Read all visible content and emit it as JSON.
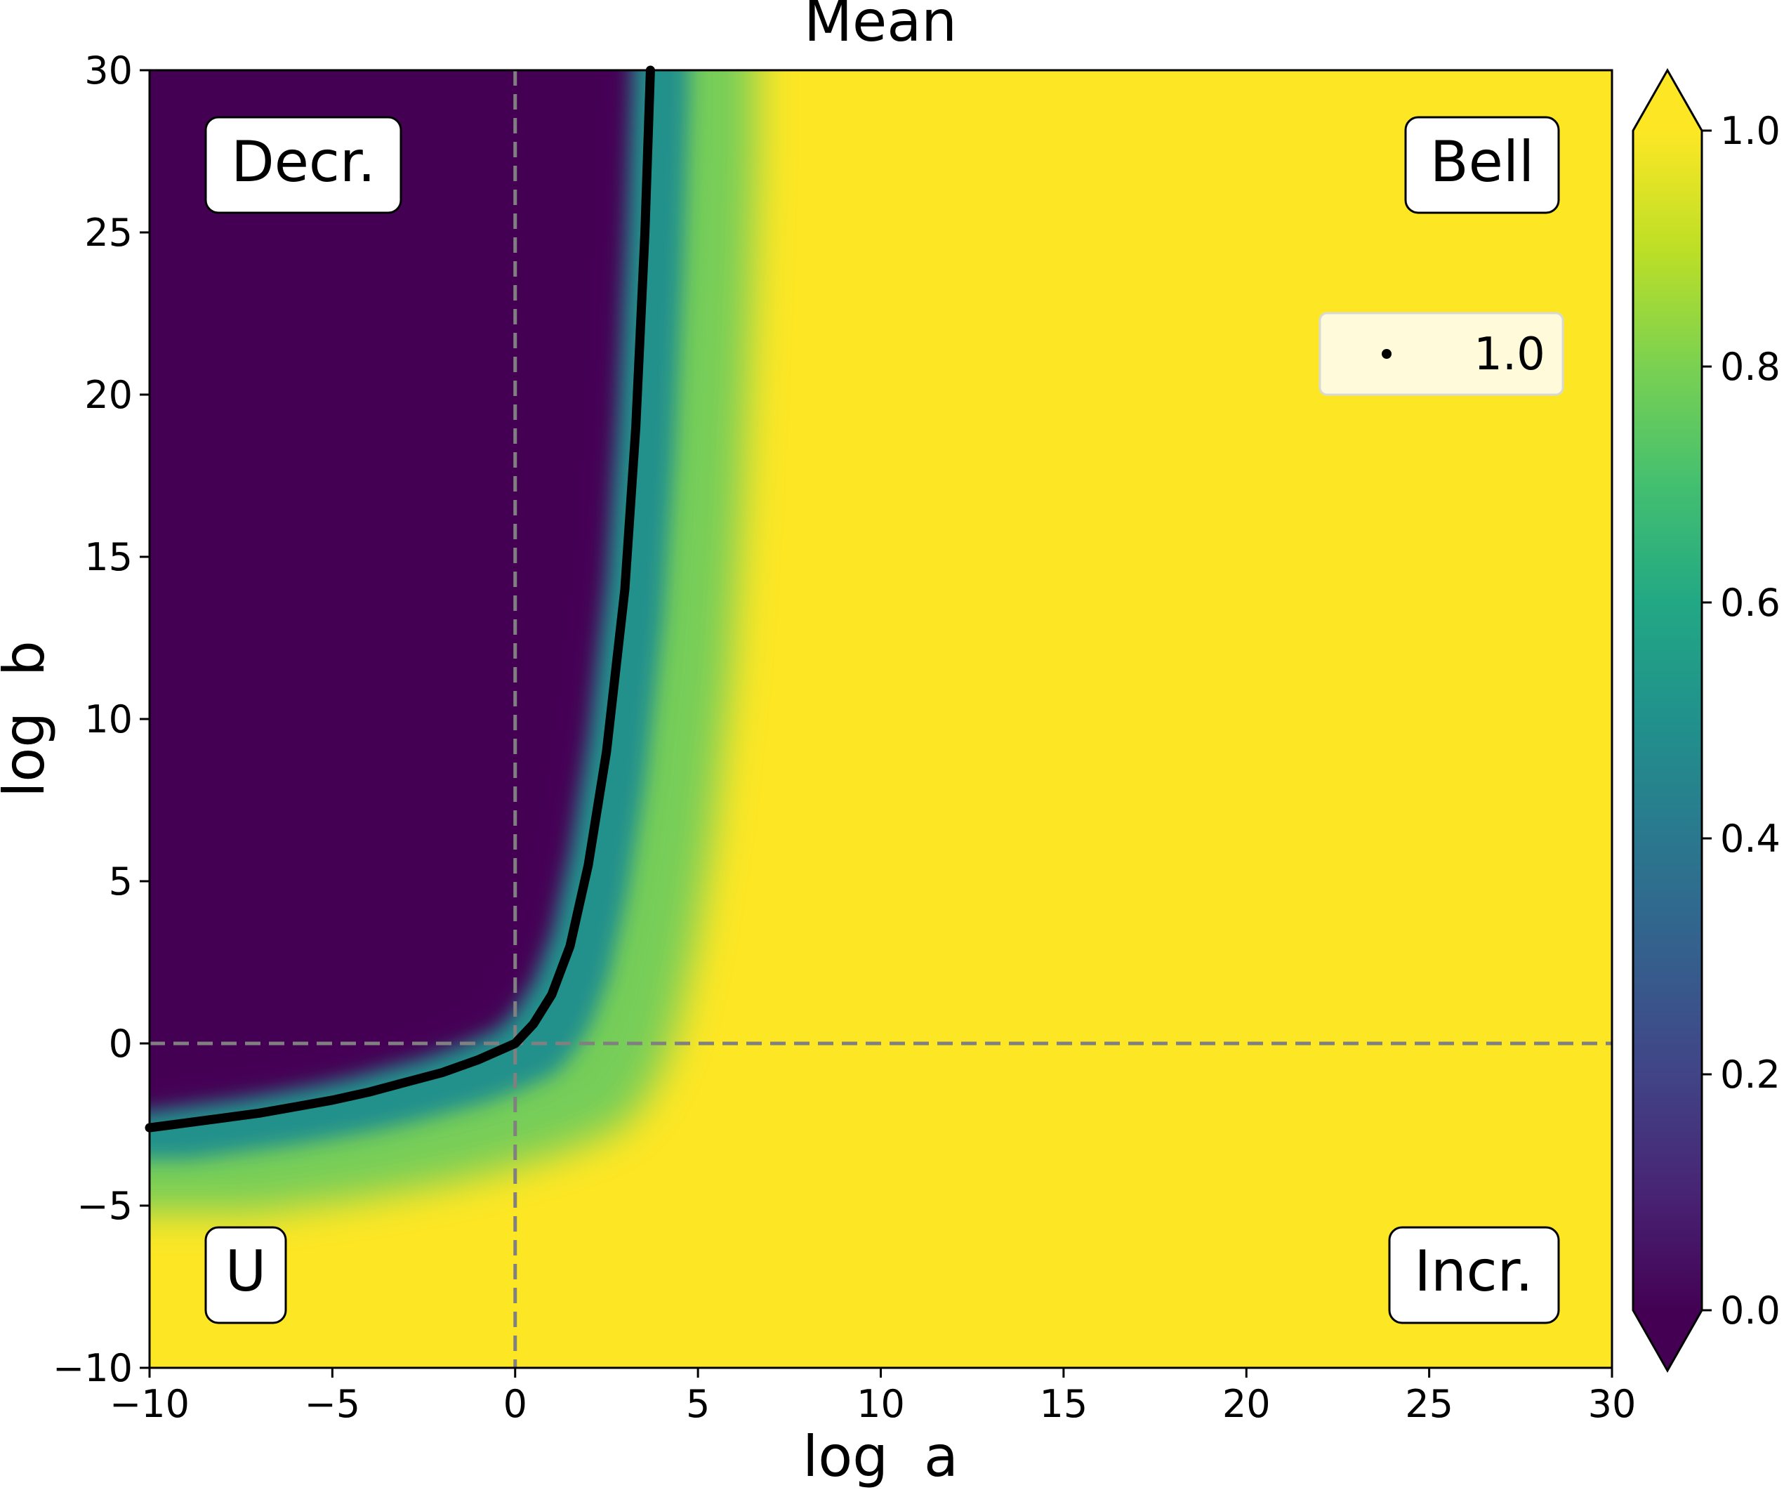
{
  "chart_data": {
    "type": "heatmap",
    "title": "Mean",
    "xlabel": "log  a",
    "ylabel": "log  b",
    "xlim": [
      -10,
      30
    ],
    "ylim": [
      -10,
      30
    ],
    "x_ticks": [
      -10,
      -5,
      0,
      5,
      10,
      15,
      20,
      25,
      30
    ],
    "y_ticks": [
      -10,
      -5,
      0,
      5,
      10,
      15,
      20,
      25,
      30
    ],
    "x_tick_labels": [
      "−10",
      "−5",
      "0",
      "5",
      "10",
      "15",
      "20",
      "25",
      "30"
    ],
    "y_tick_labels": [
      "−10",
      "−5",
      "0",
      "5",
      "10",
      "15",
      "20",
      "25",
      "30"
    ],
    "colorbar": {
      "colormap": "viridis",
      "range": [
        0.0,
        1.0
      ],
      "extend": "both",
      "ticks": [
        0.0,
        0.2,
        0.4,
        0.6,
        0.8,
        1.0
      ],
      "tick_labels": [
        "0.0",
        "0.2",
        "0.4",
        "0.6",
        "0.8",
        "1.0"
      ]
    },
    "contour": {
      "level": 1.0,
      "color": "#000000",
      "points": [
        [
          -10,
          -2.6
        ],
        [
          -9,
          -2.45
        ],
        [
          -8,
          -2.3
        ],
        [
          -7,
          -2.15
        ],
        [
          -6,
          -1.95
        ],
        [
          -5,
          -1.75
        ],
        [
          -4,
          -1.5
        ],
        [
          -3,
          -1.2
        ],
        [
          -2,
          -0.9
        ],
        [
          -1,
          -0.5
        ],
        [
          0,
          0.0
        ],
        [
          0.5,
          0.6
        ],
        [
          1,
          1.5
        ],
        [
          1.5,
          3.0
        ],
        [
          2,
          5.5
        ],
        [
          2.5,
          9.0
        ],
        [
          3,
          14.0
        ],
        [
          3.3,
          19.0
        ],
        [
          3.55,
          25.0
        ],
        [
          3.7,
          30.0
        ]
      ]
    },
    "reference_lines": {
      "x": 0,
      "y": 0,
      "color": "#808080",
      "style": "dashed"
    },
    "legend": {
      "entries": [
        "1.0"
      ],
      "placement": "upper-right"
    },
    "region_labels": {
      "top_left": "Decr.",
      "top_right": "Bell",
      "bottom_left": "U",
      "bottom_right": "Incr."
    }
  }
}
